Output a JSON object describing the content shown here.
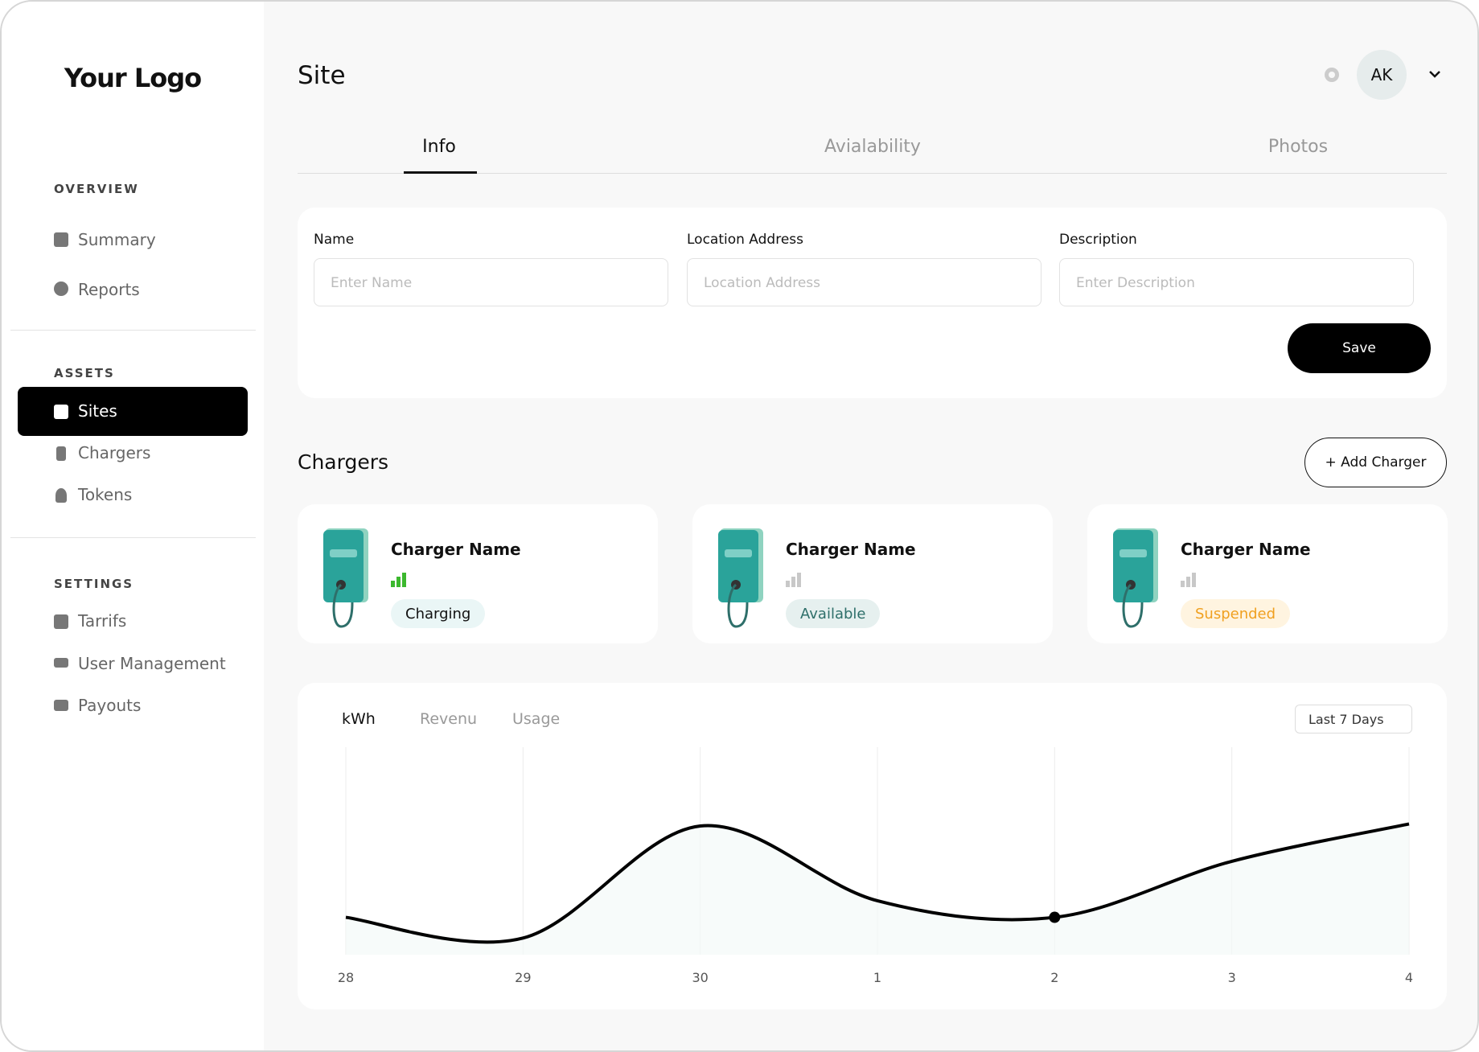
{
  "sidebar": {
    "logo": "Your Logo",
    "sections": [
      {
        "title": "OVERVIEW",
        "items": [
          "Summary",
          "Reports"
        ]
      },
      {
        "title": "ASSETS",
        "items": [
          "Sites",
          "Chargers",
          "Tokens"
        ]
      },
      {
        "title": "SETTINGS",
        "items": [
          "Tarrifs",
          "User Management",
          "Payouts"
        ]
      }
    ]
  },
  "header": {
    "title": "Site",
    "avatar": "AK"
  },
  "tabs": [
    "Info",
    "Avialability",
    "Photos"
  ],
  "form": {
    "fields": [
      {
        "label": "Name",
        "placeholder": "Enter Name"
      },
      {
        "label": "Location Address",
        "placeholder": "Location Address"
      },
      {
        "label": "Description",
        "placeholder": "Enter Description"
      }
    ],
    "save": "Save"
  },
  "chargers": {
    "title": "Chargers",
    "add": "+ Add Charger",
    "items": [
      {
        "name": "Charger Name",
        "status": "Charging"
      },
      {
        "name": "Charger Name",
        "status": "Available"
      },
      {
        "name": "Charger Name",
        "status": "Suspended"
      }
    ]
  },
  "chart_panel": {
    "tabs": [
      "kWh",
      "Revenu",
      "Usage"
    ],
    "range": "Last 7 Days"
  },
  "chart_data": {
    "type": "line",
    "categories": [
      "28",
      "29",
      "30",
      "1",
      "2",
      "3",
      "4"
    ],
    "values": [
      18,
      8,
      62,
      26,
      18,
      45,
      63
    ],
    "ylim": [
      0,
      100
    ],
    "color": "#000000"
  }
}
